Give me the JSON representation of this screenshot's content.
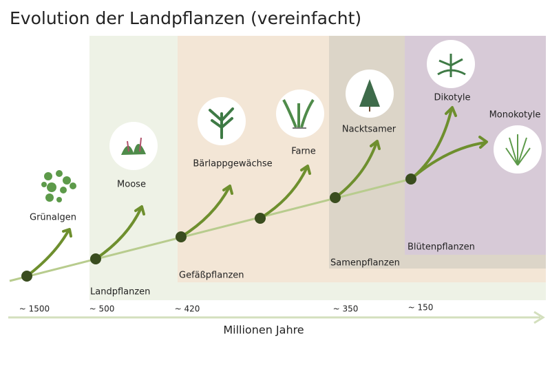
{
  "title": "Evolution der Landpflanzen (vereinfacht)",
  "nodes": [
    {
      "label": "Grünalgen"
    },
    {
      "label": "Moose"
    },
    {
      "label": "Bärlappgewächse"
    },
    {
      "label": "Farne"
    },
    {
      "label": "Nacktsamer"
    },
    {
      "label": "Dikotyle"
    },
    {
      "label": "Monokotyle"
    }
  ],
  "groups": [
    {
      "label": "Landpflanzen"
    },
    {
      "label": "Gefäßpflanzen"
    },
    {
      "label": "Samenpflanzen"
    },
    {
      "label": "Blütenpflanzen"
    }
  ],
  "timeline": {
    "ticks": [
      "~ 1500",
      "~ 500",
      "~ 420",
      "~ 350",
      "~ 150"
    ],
    "label": "Millionen Jahre"
  }
}
